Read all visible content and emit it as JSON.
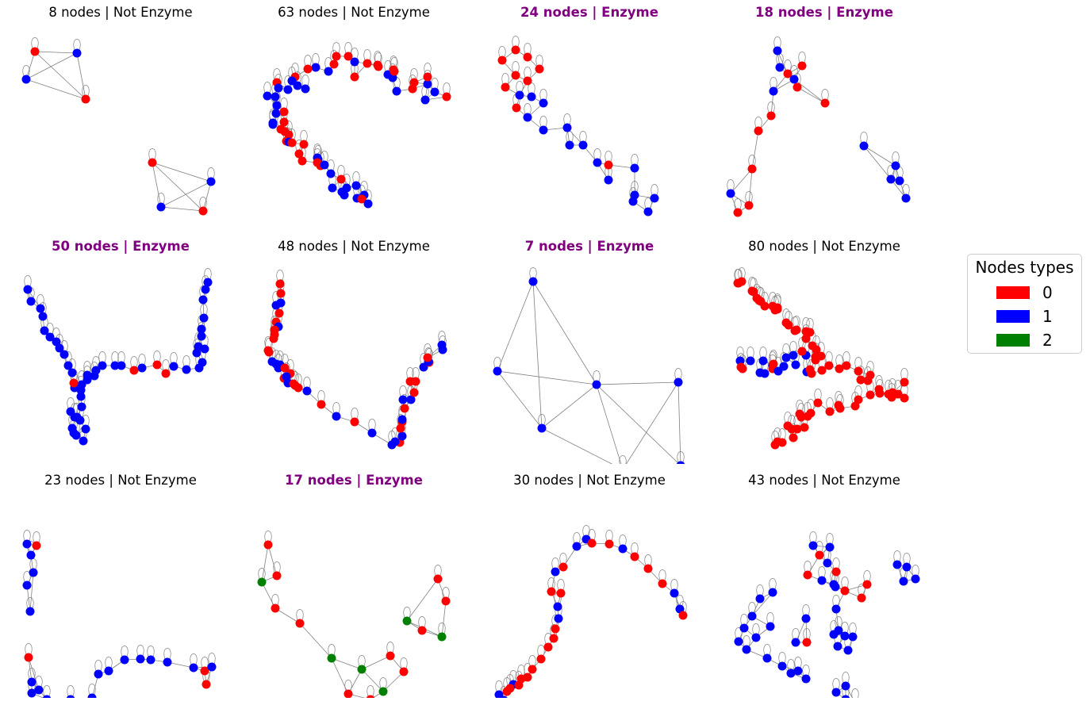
{
  "colors": {
    "edge": "#808080",
    "enzyme_title": "#800080",
    "normal_title": "#000000"
  },
  "legend": {
    "title": "Nodes types",
    "items": [
      {
        "label": "0",
        "color": "#ff0000"
      },
      {
        "label": "1",
        "color": "#0000ff"
      },
      {
        "label": "2",
        "color": "#008000"
      }
    ]
  },
  "panels": [
    {
      "title": "8 nodes | Not Enzyme",
      "enzyme": false,
      "node_count": 8
    },
    {
      "title": "63 nodes | Not Enzyme",
      "enzyme": false,
      "node_count": 63
    },
    {
      "title": "24 nodes | Enzyme",
      "enzyme": true,
      "node_count": 24
    },
    {
      "title": "18 nodes | Enzyme",
      "enzyme": true,
      "node_count": 18
    },
    {
      "title": "50 nodes | Enzyme",
      "enzyme": true,
      "node_count": 50
    },
    {
      "title": "48 nodes | Not Enzyme",
      "enzyme": false,
      "node_count": 48
    },
    {
      "title": "7 nodes | Enzyme",
      "enzyme": true,
      "node_count": 7
    },
    {
      "title": "80 nodes | Not Enzyme",
      "enzyme": false,
      "node_count": 80
    },
    {
      "title": "23 nodes | Not Enzyme",
      "enzyme": false,
      "node_count": 23
    },
    {
      "title": "17 nodes | Enzyme",
      "enzyme": true,
      "node_count": 17
    },
    {
      "title": "30 nodes | Not Enzyme",
      "enzyme": false,
      "node_count": 30
    },
    {
      "title": "43 nodes | Not Enzyme",
      "enzyme": false,
      "node_count": 43
    }
  ]
}
